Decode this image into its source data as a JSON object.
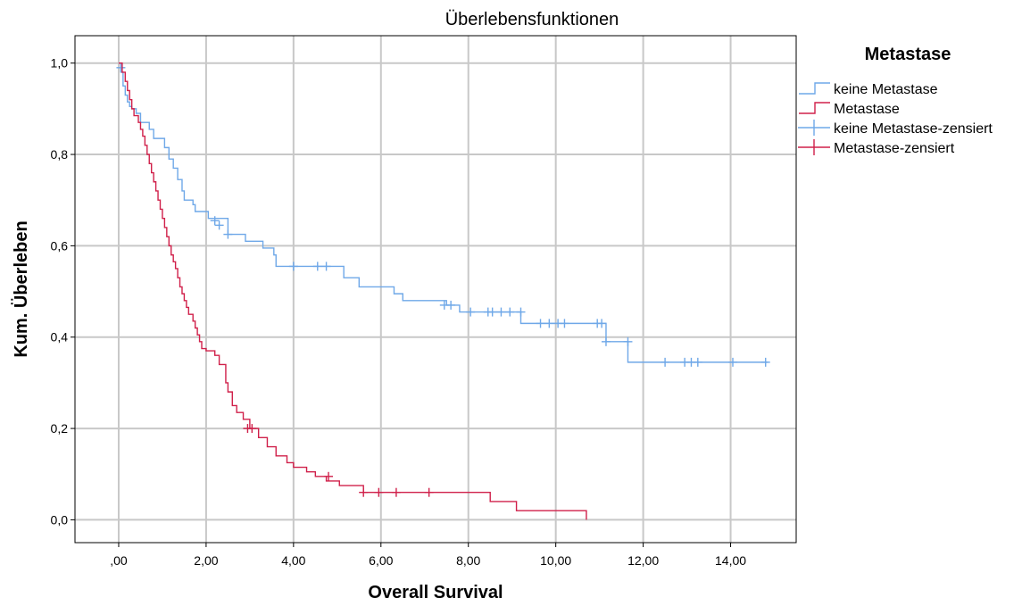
{
  "chart_data": {
    "type": "line",
    "step": true,
    "title": "Überlebensfunktionen",
    "xlabel": "Overall Survival",
    "ylabel": "Kum. Überleben",
    "xlim": [
      -1,
      15.5
    ],
    "ylim": [
      -0.05,
      1.06
    ],
    "x_ticks": [
      0,
      2,
      4,
      6,
      8,
      10,
      12,
      14
    ],
    "x_tick_labels": [
      ",00",
      "2,00",
      "4,00",
      "6,00",
      "8,00",
      "10,00",
      "12,00",
      "14,00"
    ],
    "y_ticks": [
      0,
      0.2,
      0.4,
      0.6,
      0.8,
      1.0
    ],
    "y_tick_labels": [
      "0,0",
      "0,2",
      "0,4",
      "0,6",
      "0,8",
      "1,0"
    ],
    "grid": true,
    "legend": {
      "title": "Metastase",
      "position": "top-right",
      "entries": [
        "keine Metastase",
        "Metastase",
        "keine Metastase-zensiert",
        "Metastase-zensiert"
      ]
    },
    "series": [
      {
        "name": "keine Metastase",
        "color": "#6fa8e8",
        "censor_color": "#6fa8e8",
        "x": [
          0,
          0.05,
          0.1,
          0.15,
          0.2,
          0.25,
          0.3,
          0.4,
          0.5,
          0.7,
          0.8,
          1.05,
          1.15,
          1.25,
          1.35,
          1.45,
          1.5,
          1.7,
          1.75,
          2.05,
          2.5,
          2.9,
          3.3,
          3.55,
          3.6,
          5.15,
          5.5,
          6.3,
          6.5,
          7.5,
          7.8,
          9.2,
          11.15,
          11.65
        ],
        "y": [
          1.0,
          0.98,
          0.95,
          0.93,
          0.915,
          0.905,
          0.9,
          0.89,
          0.87,
          0.855,
          0.835,
          0.815,
          0.79,
          0.77,
          0.745,
          0.72,
          0.7,
          0.69,
          0.675,
          0.66,
          0.625,
          0.61,
          0.595,
          0.58,
          0.555,
          0.53,
          0.51,
          0.495,
          0.48,
          0.47,
          0.455,
          0.43,
          0.39,
          0.345
        ],
        "x_end": 14.85,
        "censored": [
          {
            "x": 0.05,
            "y": 0.99
          },
          {
            "x": 2.2,
            "y": 0.655
          },
          {
            "x": 2.3,
            "y": 0.645
          },
          {
            "x": 2.5,
            "y": 0.625
          },
          {
            "x": 4.0,
            "y": 0.555
          },
          {
            "x": 4.55,
            "y": 0.555
          },
          {
            "x": 4.75,
            "y": 0.555
          },
          {
            "x": 7.45,
            "y": 0.47
          },
          {
            "x": 7.6,
            "y": 0.47
          },
          {
            "x": 8.05,
            "y": 0.455
          },
          {
            "x": 8.45,
            "y": 0.455
          },
          {
            "x": 8.55,
            "y": 0.455
          },
          {
            "x": 8.75,
            "y": 0.455
          },
          {
            "x": 8.95,
            "y": 0.455
          },
          {
            "x": 9.2,
            "y": 0.455
          },
          {
            "x": 9.65,
            "y": 0.43
          },
          {
            "x": 9.85,
            "y": 0.43
          },
          {
            "x": 10.05,
            "y": 0.43
          },
          {
            "x": 10.2,
            "y": 0.43
          },
          {
            "x": 10.95,
            "y": 0.43
          },
          {
            "x": 11.05,
            "y": 0.43
          },
          {
            "x": 11.15,
            "y": 0.39
          },
          {
            "x": 11.65,
            "y": 0.39
          },
          {
            "x": 12.5,
            "y": 0.345
          },
          {
            "x": 12.95,
            "y": 0.345
          },
          {
            "x": 13.1,
            "y": 0.345
          },
          {
            "x": 13.25,
            "y": 0.345
          },
          {
            "x": 14.05,
            "y": 0.345
          },
          {
            "x": 14.8,
            "y": 0.345
          }
        ]
      },
      {
        "name": "Metastase",
        "color": "#d0204a",
        "censor_color": "#d0204a",
        "x": [
          0,
          0.08,
          0.15,
          0.2,
          0.25,
          0.3,
          0.35,
          0.45,
          0.5,
          0.55,
          0.6,
          0.65,
          0.7,
          0.75,
          0.8,
          0.85,
          0.9,
          0.95,
          1.0,
          1.05,
          1.1,
          1.15,
          1.2,
          1.25,
          1.3,
          1.35,
          1.4,
          1.45,
          1.5,
          1.55,
          1.6,
          1.7,
          1.75,
          1.8,
          1.85,
          1.9,
          2.0,
          2.2,
          2.3,
          2.45,
          2.5,
          2.6,
          2.7,
          2.85,
          3.0,
          3.2,
          3.4,
          3.6,
          3.85,
          4.0,
          4.3,
          4.5,
          4.75,
          5.05,
          5.6,
          8.5,
          9.1,
          10.7
        ],
        "y": [
          1.0,
          0.98,
          0.96,
          0.94,
          0.92,
          0.9,
          0.885,
          0.87,
          0.855,
          0.84,
          0.82,
          0.8,
          0.78,
          0.76,
          0.74,
          0.72,
          0.7,
          0.68,
          0.66,
          0.64,
          0.62,
          0.6,
          0.58,
          0.565,
          0.55,
          0.53,
          0.51,
          0.495,
          0.48,
          0.465,
          0.45,
          0.435,
          0.42,
          0.405,
          0.39,
          0.375,
          0.37,
          0.36,
          0.34,
          0.3,
          0.28,
          0.25,
          0.235,
          0.22,
          0.2,
          0.18,
          0.16,
          0.14,
          0.125,
          0.115,
          0.105,
          0.095,
          0.085,
          0.075,
          0.06,
          0.04,
          0.02,
          0.0
        ],
        "x_end": 10.7,
        "censored": [
          {
            "x": 2.95,
            "y": 0.2
          },
          {
            "x": 3.05,
            "y": 0.2
          },
          {
            "x": 4.8,
            "y": 0.095
          },
          {
            "x": 5.6,
            "y": 0.06
          },
          {
            "x": 5.95,
            "y": 0.06
          },
          {
            "x": 6.35,
            "y": 0.06
          },
          {
            "x": 7.1,
            "y": 0.06
          }
        ]
      }
    ]
  }
}
